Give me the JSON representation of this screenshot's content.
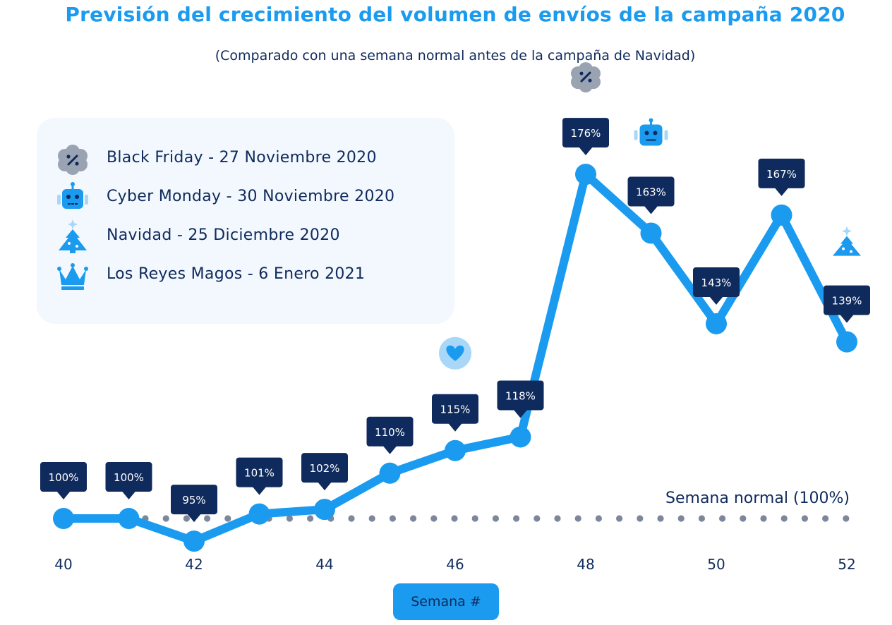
{
  "title": "Previsión del crecimiento del volumen de envíos de la campaña 2020",
  "subtitle": "(Comparado con una semana normal antes de la campaña de Navidad)",
  "legend": [
    {
      "icon": "discount-badge-icon",
      "label": "Black Friday - 27 Noviembre 2020"
    },
    {
      "icon": "robot-icon",
      "label": "Cyber Monday - 30 Noviembre 2020"
    },
    {
      "icon": "christmas-tree-icon",
      "label": "Navidad - 25 Diciembre 2020"
    },
    {
      "icon": "crown-icon",
      "label": "Los Reyes Magos - 6 Enero 2021"
    }
  ],
  "colors": {
    "line": "#1a9bef",
    "label_bg": "#0f2a5c",
    "baseline_dots": "#7d879b",
    "legend_bg": "#f2f8fd"
  },
  "chart_data": {
    "type": "line",
    "x": [
      40,
      41,
      42,
      43,
      44,
      45,
      46,
      47,
      48,
      49,
      50,
      51,
      52
    ],
    "values": [
      100,
      100,
      95,
      101,
      102,
      110,
      115,
      118,
      176,
      163,
      143,
      167,
      139
    ],
    "data_labels": [
      "100%",
      "100%",
      "95%",
      "101%",
      "102%",
      "110%",
      "115%",
      "118%",
      "176%",
      "163%",
      "143%",
      "167%",
      "139%"
    ],
    "x_ticks": [
      40,
      42,
      44,
      46,
      48,
      50,
      52
    ],
    "xlabel": "Semana #",
    "ylabel": "",
    "baseline": {
      "value": 100,
      "label": "Semana normal (100%)"
    },
    "event_icons": [
      {
        "x": 46,
        "icon": "heart-icon"
      },
      {
        "x": 48,
        "icon": "discount-badge-icon"
      },
      {
        "x": 49,
        "icon": "robot-icon"
      },
      {
        "x": 52,
        "icon": "christmas-tree-icon"
      }
    ]
  }
}
